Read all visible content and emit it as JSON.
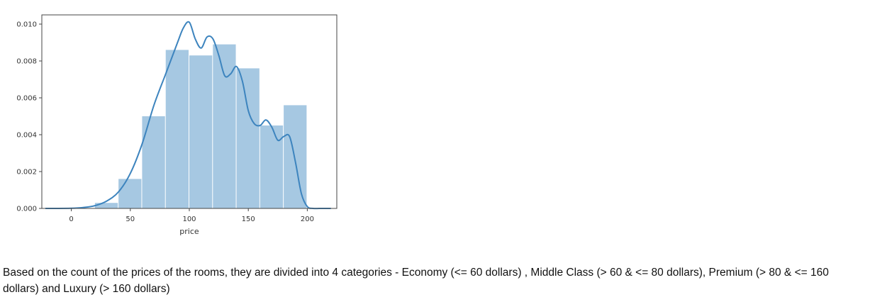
{
  "chart_data": {
    "type": "bar",
    "subtype": "histogram-with-kde",
    "title": "",
    "xlabel": "price",
    "ylabel": "",
    "xlim": [
      -25,
      225
    ],
    "ylim": [
      0,
      0.0105
    ],
    "x_ticks": [
      0,
      50,
      100,
      150,
      200
    ],
    "x_tick_labels": [
      "0",
      "50",
      "100",
      "150",
      "200"
    ],
    "y_ticks": [
      0.0,
      0.002,
      0.004,
      0.006,
      0.008,
      0.01
    ],
    "y_tick_labels": [
      "0.000",
      "0.002",
      "0.004",
      "0.006",
      "0.008",
      "0.010"
    ],
    "grid": false,
    "bins": [
      {
        "x0": 20,
        "x1": 40,
        "value": 0.0003
      },
      {
        "x0": 40,
        "x1": 60,
        "value": 0.0016
      },
      {
        "x0": 60,
        "x1": 80,
        "value": 0.005
      },
      {
        "x0": 80,
        "x1": 100,
        "value": 0.0086
      },
      {
        "x0": 100,
        "x1": 120,
        "value": 0.0083
      },
      {
        "x0": 120,
        "x1": 140,
        "value": 0.0089
      },
      {
        "x0": 140,
        "x1": 160,
        "value": 0.0076
      },
      {
        "x0": 160,
        "x1": 180,
        "value": 0.0045
      },
      {
        "x0": 180,
        "x1": 200,
        "value": 0.0056
      }
    ],
    "kde": {
      "x": [
        -22,
        0,
        10,
        20,
        30,
        40,
        50,
        60,
        70,
        80,
        90,
        95,
        100,
        105,
        110,
        115,
        120,
        125,
        130,
        135,
        140,
        145,
        150,
        155,
        160,
        165,
        170,
        175,
        180,
        185,
        190,
        195,
        200,
        205,
        210,
        215,
        220
      ],
      "y": [
        0.0,
        1e-05,
        5e-05,
        0.00015,
        0.0004,
        0.0009,
        0.0019,
        0.0035,
        0.0056,
        0.0073,
        0.009,
        0.0098,
        0.0101,
        0.0092,
        0.0087,
        0.0093,
        0.0092,
        0.0083,
        0.0072,
        0.0073,
        0.0077,
        0.0069,
        0.0053,
        0.0046,
        0.0045,
        0.0048,
        0.0044,
        0.0037,
        0.0039,
        0.0039,
        0.0025,
        0.0008,
        0.0001,
        0.0,
        0.0,
        0.0,
        0.0
      ]
    },
    "colors": {
      "bar": "#a6c8e2",
      "line": "#3d84be",
      "axis": "#444444"
    }
  },
  "caption": "Based on the count of the prices of the rooms, they are divided into 4 categories - Economy (<= 60 dollars) , Middle Class (> 60 & <= 80 dollars), Premium (> 80 & <= 160 dollars) and Luxury (> 160 dollars)"
}
